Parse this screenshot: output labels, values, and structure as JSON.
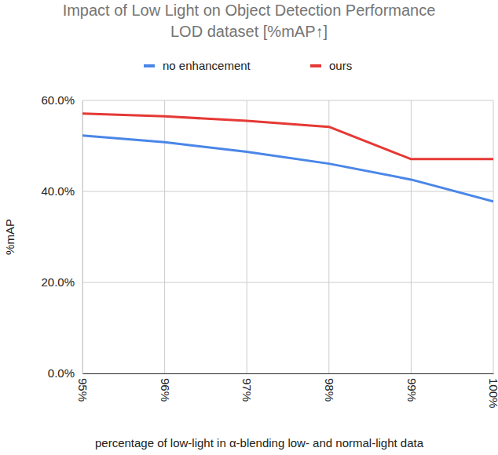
{
  "chart_data": {
    "type": "line",
    "title": [
      "Impact of Low Light on Object Detection Performance",
      "LOD dataset [%mAP↑]"
    ],
    "x_label": "percentage of low-light in α-blending low- and normal-light data",
    "y_label": "%mAP",
    "categories": [
      "95%",
      "96%",
      "97%",
      "98%",
      "99%",
      "100%"
    ],
    "series": [
      {
        "name": "no enhancement",
        "color": "#4a86e8",
        "values": [
          52.3,
          50.8,
          48.7,
          46.1,
          42.6,
          37.8
        ]
      },
      {
        "name": "ours",
        "color": "#e53935",
        "values": [
          57.1,
          56.5,
          55.5,
          54.2,
          47.1,
          47.1
        ]
      }
    ],
    "ylim": [
      0,
      60
    ],
    "yticks": [
      {
        "value": 0,
        "label": "0.0%"
      },
      {
        "value": 20,
        "label": "20.0%"
      },
      {
        "value": 40,
        "label": "40.0%"
      },
      {
        "value": 60,
        "label": "60.0%"
      }
    ],
    "grid": true,
    "legend": "top"
  }
}
